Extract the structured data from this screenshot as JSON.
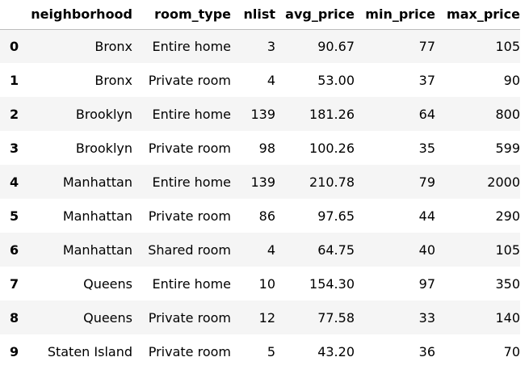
{
  "table": {
    "index_header": "",
    "columns": [
      "neighborhood",
      "room_type",
      "nlist",
      "avg_price",
      "min_price",
      "max_price"
    ],
    "rows": [
      {
        "index": "0",
        "neighborhood": "Bronx",
        "room_type": "Entire home",
        "nlist": "3",
        "avg_price": "90.67",
        "min_price": "77",
        "max_price": "105"
      },
      {
        "index": "1",
        "neighborhood": "Bronx",
        "room_type": "Private room",
        "nlist": "4",
        "avg_price": "53.00",
        "min_price": "37",
        "max_price": "90"
      },
      {
        "index": "2",
        "neighborhood": "Brooklyn",
        "room_type": "Entire home",
        "nlist": "139",
        "avg_price": "181.26",
        "min_price": "64",
        "max_price": "800"
      },
      {
        "index": "3",
        "neighborhood": "Brooklyn",
        "room_type": "Private room",
        "nlist": "98",
        "avg_price": "100.26",
        "min_price": "35",
        "max_price": "599"
      },
      {
        "index": "4",
        "neighborhood": "Manhattan",
        "room_type": "Entire home",
        "nlist": "139",
        "avg_price": "210.78",
        "min_price": "79",
        "max_price": "2000"
      },
      {
        "index": "5",
        "neighborhood": "Manhattan",
        "room_type": "Private room",
        "nlist": "86",
        "avg_price": "97.65",
        "min_price": "44",
        "max_price": "290"
      },
      {
        "index": "6",
        "neighborhood": "Manhattan",
        "room_type": "Shared room",
        "nlist": "4",
        "avg_price": "64.75",
        "min_price": "40",
        "max_price": "105"
      },
      {
        "index": "7",
        "neighborhood": "Queens",
        "room_type": "Entire home",
        "nlist": "10",
        "avg_price": "154.30",
        "min_price": "97",
        "max_price": "350"
      },
      {
        "index": "8",
        "neighborhood": "Queens",
        "room_type": "Private room",
        "nlist": "12",
        "avg_price": "77.58",
        "min_price": "33",
        "max_price": "140"
      },
      {
        "index": "9",
        "neighborhood": "Staten Island",
        "room_type": "Private room",
        "nlist": "5",
        "avg_price": "43.20",
        "min_price": "36",
        "max_price": "70"
      }
    ]
  }
}
